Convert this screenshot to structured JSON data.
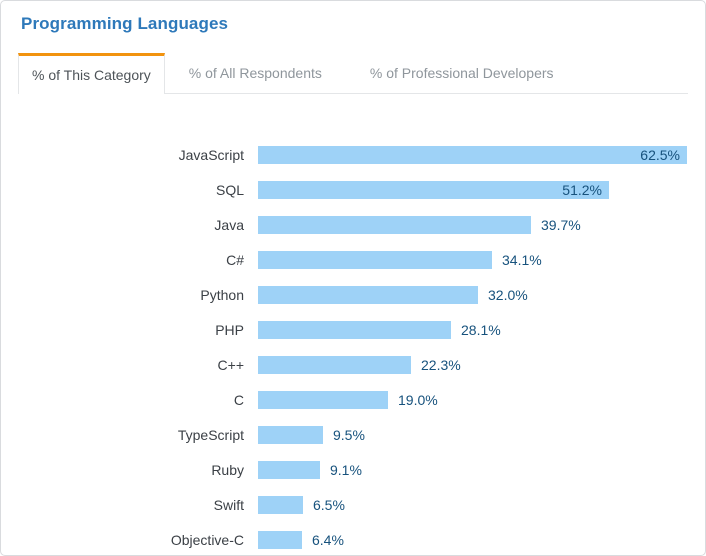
{
  "header": {
    "title": "Programming Languages"
  },
  "tabs": [
    {
      "label": "% of This Category",
      "active": true
    },
    {
      "label": "% of All Respondents",
      "active": false
    },
    {
      "label": "% of Professional Developers",
      "active": false
    }
  ],
  "chart_data": {
    "type": "bar",
    "orientation": "horizontal",
    "title": "Programming Languages",
    "categories": [
      "JavaScript",
      "SQL",
      "Java",
      "C#",
      "Python",
      "PHP",
      "C++",
      "C",
      "TypeScript",
      "Ruby",
      "Swift",
      "Objective-C"
    ],
    "values": [
      62.5,
      51.2,
      39.7,
      34.1,
      32.0,
      28.1,
      22.3,
      19.0,
      9.5,
      9.1,
      6.5,
      6.4
    ],
    "value_labels": [
      "62.5%",
      "51.2%",
      "39.7%",
      "34.1%",
      "32.0%",
      "28.1%",
      "22.3%",
      "19.0%",
      "9.5%",
      "9.1%",
      "6.5%",
      "6.4%"
    ],
    "axis_max": 62.5,
    "inside_label_min_value": 45,
    "grid": false,
    "legend": "none"
  },
  "colors": {
    "title_blue": "#2e79ba",
    "active_tab_accent": "#f2930e",
    "bar_fill": "#9ed2f7",
    "value_text": "#17527d",
    "category_text": "#3b4046"
  }
}
